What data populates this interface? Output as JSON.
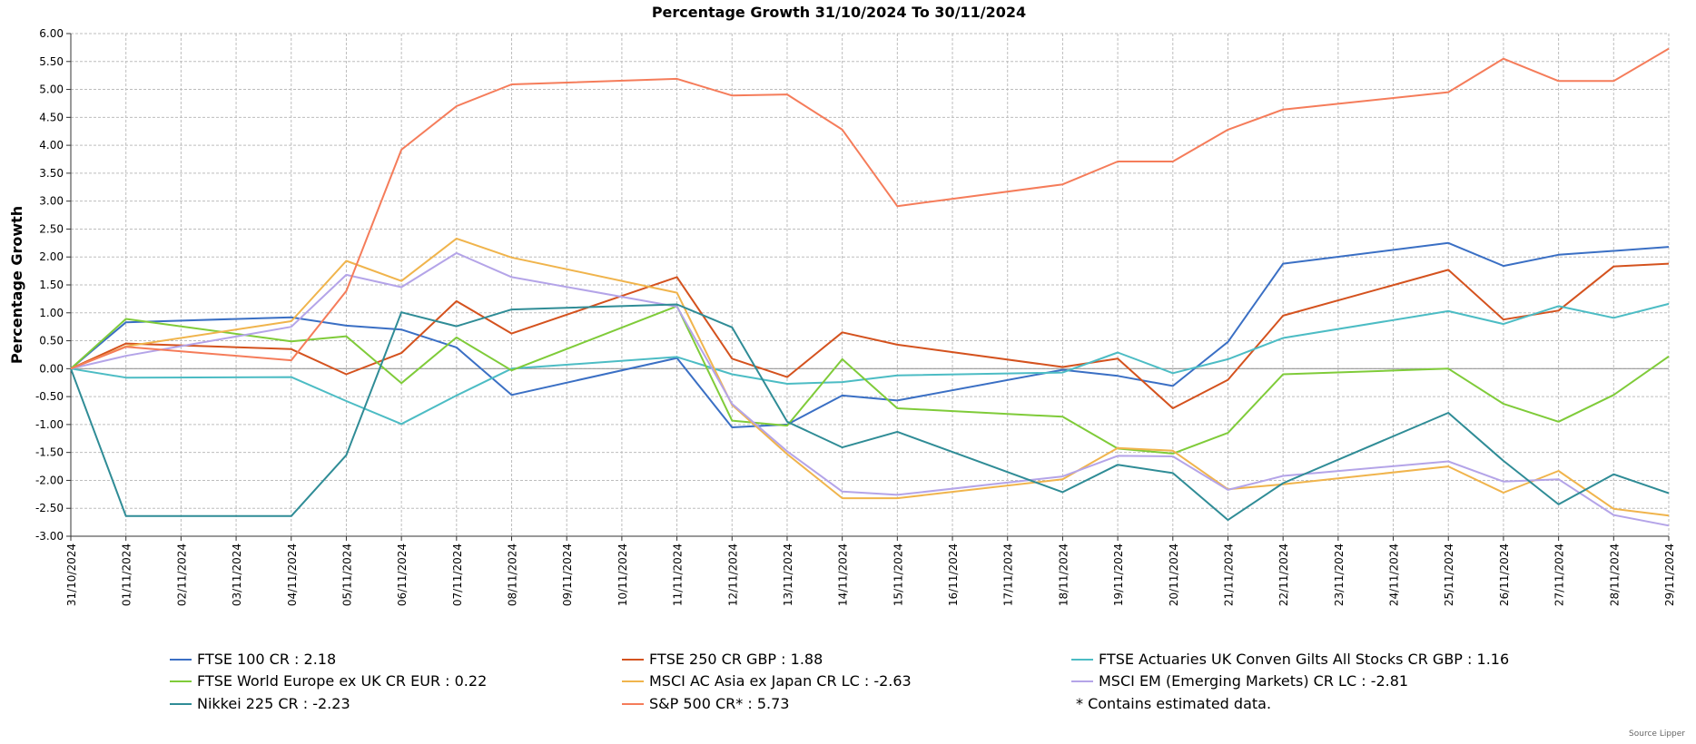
{
  "chart_data": {
    "type": "line",
    "title": "Percentage Growth 31/10/2024 To 30/11/2024",
    "ylabel": "Percentage Growth",
    "xlabel": "",
    "ylim": [
      -3.0,
      6.0
    ],
    "y_ticks": [
      "6.00",
      "5.50",
      "5.00",
      "4.50",
      "4.00",
      "3.50",
      "3.00",
      "2.50",
      "2.00",
      "1.50",
      "1.00",
      "0.50",
      "0.00",
      "-0.50",
      "-1.00",
      "-1.50",
      "-2.00",
      "-2.50",
      "-3.00"
    ],
    "grid": true,
    "x": [
      "31/10/2024",
      "01/11/2024",
      "02/11/2024",
      "03/11/2024",
      "04/11/2024",
      "05/11/2024",
      "06/11/2024",
      "07/11/2024",
      "08/11/2024",
      "09/11/2024",
      "10/11/2024",
      "11/11/2024",
      "12/11/2024",
      "13/11/2024",
      "14/11/2024",
      "15/11/2024",
      "16/11/2024",
      "17/11/2024",
      "18/11/2024",
      "19/11/2024",
      "20/11/2024",
      "21/11/2024",
      "22/11/2024",
      "23/11/2024",
      "24/11/2024",
      "25/11/2024",
      "26/11/2024",
      "27/11/2024",
      "28/11/2024",
      "29/11/2024"
    ],
    "series": [
      {
        "name": "FTSE 100 CR",
        "legend": "FTSE 100 CR : 2.18",
        "color": "#3a6fc4",
        "points": [
          [
            0,
            0.0
          ],
          [
            1,
            0.83
          ],
          [
            4,
            0.92
          ],
          [
            5,
            0.77
          ],
          [
            6,
            0.7
          ],
          [
            7,
            0.38
          ],
          [
            8,
            -0.47
          ],
          [
            11,
            0.19
          ],
          [
            12,
            -1.05
          ],
          [
            13,
            -1.0
          ],
          [
            14,
            -0.48
          ],
          [
            15,
            -0.57
          ],
          [
            18,
            -0.02
          ],
          [
            19,
            -0.13
          ],
          [
            20,
            -0.31
          ],
          [
            21,
            0.48
          ],
          [
            22,
            1.88
          ],
          [
            25,
            2.25
          ],
          [
            26,
            1.84
          ],
          [
            27,
            2.04
          ],
          [
            28,
            2.11
          ],
          [
            29,
            2.18
          ]
        ]
      },
      {
        "name": "FTSE 250 CR GBP",
        "legend": "FTSE 250 CR GBP : 1.88",
        "color": "#d4521e",
        "points": [
          [
            0,
            0.0
          ],
          [
            1,
            0.45
          ],
          [
            4,
            0.35
          ],
          [
            5,
            -0.1
          ],
          [
            6,
            0.28
          ],
          [
            7,
            1.21
          ],
          [
            8,
            0.63
          ],
          [
            11,
            1.64
          ],
          [
            12,
            0.18
          ],
          [
            13,
            -0.15
          ],
          [
            14,
            0.65
          ],
          [
            15,
            0.43
          ],
          [
            18,
            0.03
          ],
          [
            19,
            0.18
          ],
          [
            20,
            -0.71
          ],
          [
            21,
            -0.2
          ],
          [
            22,
            0.95
          ],
          [
            25,
            1.77
          ],
          [
            26,
            0.88
          ],
          [
            27,
            1.04
          ],
          [
            28,
            1.83
          ],
          [
            29,
            1.88
          ]
        ]
      },
      {
        "name": "FTSE Actuaries UK Conven Gilts All Stocks CR GBP",
        "legend": "FTSE Actuaries UK Conven Gilts All Stocks CR GBP : 1.16",
        "color": "#4cbcc4",
        "points": [
          [
            0,
            0.0
          ],
          [
            1,
            -0.16
          ],
          [
            4,
            -0.15
          ],
          [
            5,
            -0.58
          ],
          [
            6,
            -0.99
          ],
          [
            7,
            -0.48
          ],
          [
            8,
            0.0
          ],
          [
            11,
            0.21
          ],
          [
            12,
            -0.1
          ],
          [
            13,
            -0.27
          ],
          [
            14,
            -0.24
          ],
          [
            15,
            -0.12
          ],
          [
            18,
            -0.07
          ],
          [
            19,
            0.29
          ],
          [
            20,
            -0.08
          ],
          [
            21,
            0.17
          ],
          [
            22,
            0.55
          ],
          [
            25,
            1.03
          ],
          [
            26,
            0.8
          ],
          [
            27,
            1.12
          ],
          [
            28,
            0.91
          ],
          [
            29,
            1.16
          ]
        ]
      },
      {
        "name": "FTSE World Europe ex UK CR EUR",
        "legend": "FTSE World Europe ex UK CR EUR : 0.22",
        "color": "#7fcb39",
        "points": [
          [
            0,
            0.0
          ],
          [
            1,
            0.89
          ],
          [
            4,
            0.49
          ],
          [
            5,
            0.58
          ],
          [
            6,
            -0.26
          ],
          [
            7,
            0.56
          ],
          [
            8,
            -0.03
          ],
          [
            11,
            1.12
          ],
          [
            12,
            -0.93
          ],
          [
            13,
            -1.02
          ],
          [
            14,
            0.17
          ],
          [
            15,
            -0.71
          ],
          [
            18,
            -0.86
          ],
          [
            19,
            -1.43
          ],
          [
            20,
            -1.52
          ],
          [
            21,
            -1.15
          ],
          [
            22,
            -0.1
          ],
          [
            25,
            0.0
          ],
          [
            26,
            -0.63
          ],
          [
            27,
            -0.95
          ],
          [
            28,
            -0.47
          ],
          [
            29,
            0.22
          ]
        ]
      },
      {
        "name": "MSCI AC Asia ex Japan CR LC",
        "legend": "MSCI AC Asia ex Japan CR LC : -2.63",
        "color": "#f0b44c",
        "points": [
          [
            0,
            0.0
          ],
          [
            1,
            0.4
          ],
          [
            4,
            0.85
          ],
          [
            5,
            1.93
          ],
          [
            6,
            1.57
          ],
          [
            7,
            2.33
          ],
          [
            8,
            1.99
          ],
          [
            11,
            1.36
          ],
          [
            12,
            -0.65
          ],
          [
            13,
            -1.53
          ],
          [
            14,
            -2.32
          ],
          [
            15,
            -2.32
          ],
          [
            18,
            -1.98
          ],
          [
            19,
            -1.42
          ],
          [
            20,
            -1.47
          ],
          [
            21,
            -2.16
          ],
          [
            22,
            -2.07
          ],
          [
            25,
            -1.75
          ],
          [
            26,
            -2.22
          ],
          [
            27,
            -1.83
          ],
          [
            28,
            -2.51
          ],
          [
            29,
            -2.63
          ]
        ]
      },
      {
        "name": "MSCI EM (Emerging Markets) CR LC",
        "legend": "MSCI EM (Emerging Markets) CR LC : -2.81",
        "color": "#b4a4e8",
        "points": [
          [
            0,
            0.0
          ],
          [
            1,
            0.23
          ],
          [
            4,
            0.75
          ],
          [
            5,
            1.68
          ],
          [
            6,
            1.46
          ],
          [
            7,
            2.07
          ],
          [
            8,
            1.64
          ],
          [
            11,
            1.11
          ],
          [
            12,
            -0.63
          ],
          [
            13,
            -1.48
          ],
          [
            14,
            -2.2
          ],
          [
            15,
            -2.26
          ],
          [
            18,
            -1.93
          ],
          [
            19,
            -1.56
          ],
          [
            20,
            -1.57
          ],
          [
            21,
            -2.17
          ],
          [
            22,
            -1.92
          ],
          [
            25,
            -1.66
          ],
          [
            26,
            -2.02
          ],
          [
            27,
            -1.98
          ],
          [
            28,
            -2.62
          ],
          [
            29,
            -2.81
          ]
        ]
      },
      {
        "name": "Nikkei 225 CR",
        "legend": "Nikkei 225 CR : -2.23",
        "color": "#2f8c96",
        "points": [
          [
            0,
            0.0
          ],
          [
            1,
            -2.64
          ],
          [
            4,
            -2.64
          ],
          [
            5,
            -1.55
          ],
          [
            6,
            1.01
          ],
          [
            7,
            0.76
          ],
          [
            8,
            1.06
          ],
          [
            11,
            1.15
          ],
          [
            12,
            0.74
          ],
          [
            13,
            -0.95
          ],
          [
            14,
            -1.41
          ],
          [
            15,
            -1.13
          ],
          [
            18,
            -2.21
          ],
          [
            19,
            -1.72
          ],
          [
            20,
            -1.87
          ],
          [
            21,
            -2.71
          ],
          [
            22,
            -2.05
          ],
          [
            25,
            -0.79
          ],
          [
            26,
            -1.65
          ],
          [
            27,
            -2.43
          ],
          [
            28,
            -1.89
          ],
          [
            29,
            -2.23
          ]
        ]
      },
      {
        "name": "S&P 500 CR*",
        "legend": "S&P 500 CR* : 5.73",
        "color": "#f57c5a",
        "points": [
          [
            0,
            0.0
          ],
          [
            1,
            0.39
          ],
          [
            4,
            0.15
          ],
          [
            5,
            1.39
          ],
          [
            6,
            3.92
          ],
          [
            7,
            4.7
          ],
          [
            8,
            5.09
          ],
          [
            11,
            5.19
          ],
          [
            12,
            4.89
          ],
          [
            13,
            4.91
          ],
          [
            14,
            4.28
          ],
          [
            15,
            2.91
          ],
          [
            18,
            3.3
          ],
          [
            19,
            3.71
          ],
          [
            20,
            3.71
          ],
          [
            21,
            4.28
          ],
          [
            22,
            4.64
          ],
          [
            25,
            4.95
          ],
          [
            26,
            5.55
          ],
          [
            27,
            5.15
          ],
          [
            28,
            5.15
          ],
          [
            29,
            5.73
          ]
        ]
      }
    ],
    "note": "*  Contains estimated data.",
    "source": "Source Lipper",
    "legend_position": "bottom"
  }
}
